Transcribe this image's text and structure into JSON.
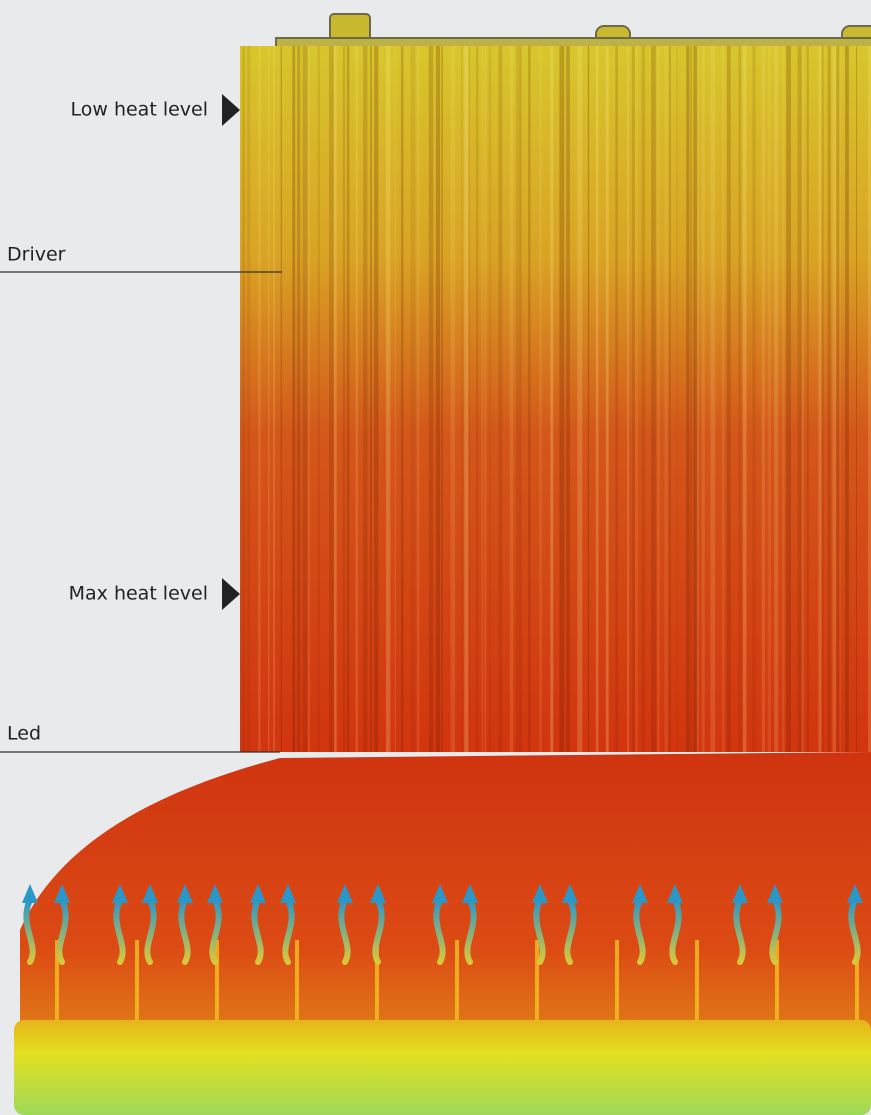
{
  "labels": [
    "Low heat level",
    "Driver",
    "Max heat level",
    "Led"
  ]
}
